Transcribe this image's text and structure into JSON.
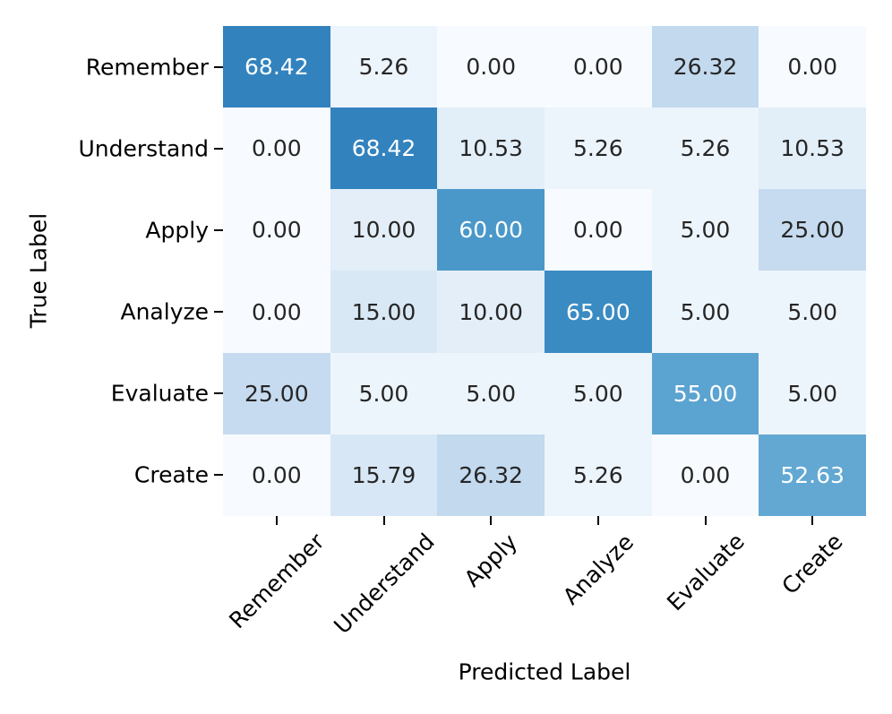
{
  "chart_data": {
    "type": "heatmap",
    "title": "",
    "xlabel": "Predicted Label",
    "ylabel": "True Label",
    "x_categories": [
      "Remember",
      "Understand",
      "Apply",
      "Analyze",
      "Evaluate",
      "Create"
    ],
    "y_categories": [
      "Remember",
      "Understand",
      "Apply",
      "Analyze",
      "Evaluate",
      "Create"
    ],
    "values": [
      [
        68.42,
        5.26,
        0.0,
        0.0,
        26.32,
        0.0
      ],
      [
        0.0,
        68.42,
        10.53,
        5.26,
        5.26,
        10.53
      ],
      [
        0.0,
        10.0,
        60.0,
        0.0,
        5.0,
        25.0
      ],
      [
        0.0,
        15.0,
        10.0,
        65.0,
        5.0,
        5.0
      ],
      [
        25.0,
        5.0,
        5.0,
        5.0,
        55.0,
        5.0
      ],
      [
        0.0,
        15.79,
        26.32,
        5.26,
        0.0,
        52.63
      ]
    ],
    "value_decimals": 2,
    "colormap": "Blues",
    "vmin": 0,
    "vmax": 100,
    "legend": "none",
    "grid": "off",
    "cell_colors": [
      [
        "#3282be",
        "#ecf4fc",
        "#f7fbff",
        "#f7fbff",
        "#c2d9ee",
        "#f7fbff"
      ],
      [
        "#f7fbff",
        "#3282be",
        "#e2eef8",
        "#ecf4fc",
        "#ecf4fc",
        "#e2eef8"
      ],
      [
        "#f7fbff",
        "#e3eef9",
        "#4a98c9",
        "#f7fbff",
        "#edf5fc",
        "#c6dbef"
      ],
      [
        "#f7fbff",
        "#d9e8f5",
        "#e3eef9",
        "#3b8bc3",
        "#edf5fc",
        "#edf5fc"
      ],
      [
        "#c6dbef",
        "#edf5fc",
        "#edf5fc",
        "#edf5fc",
        "#5ba3d0",
        "#edf5fc"
      ],
      [
        "#f7fbff",
        "#d8e7f5",
        "#c2d9ee",
        "#ecf4fc",
        "#f7fbff",
        "#62a8d3"
      ]
    ],
    "annot_text": {
      "light": "#ffffff",
      "dark": "#262626",
      "light_threshold": 40
    },
    "tick_color": "#000000",
    "background": "#ffffff"
  }
}
